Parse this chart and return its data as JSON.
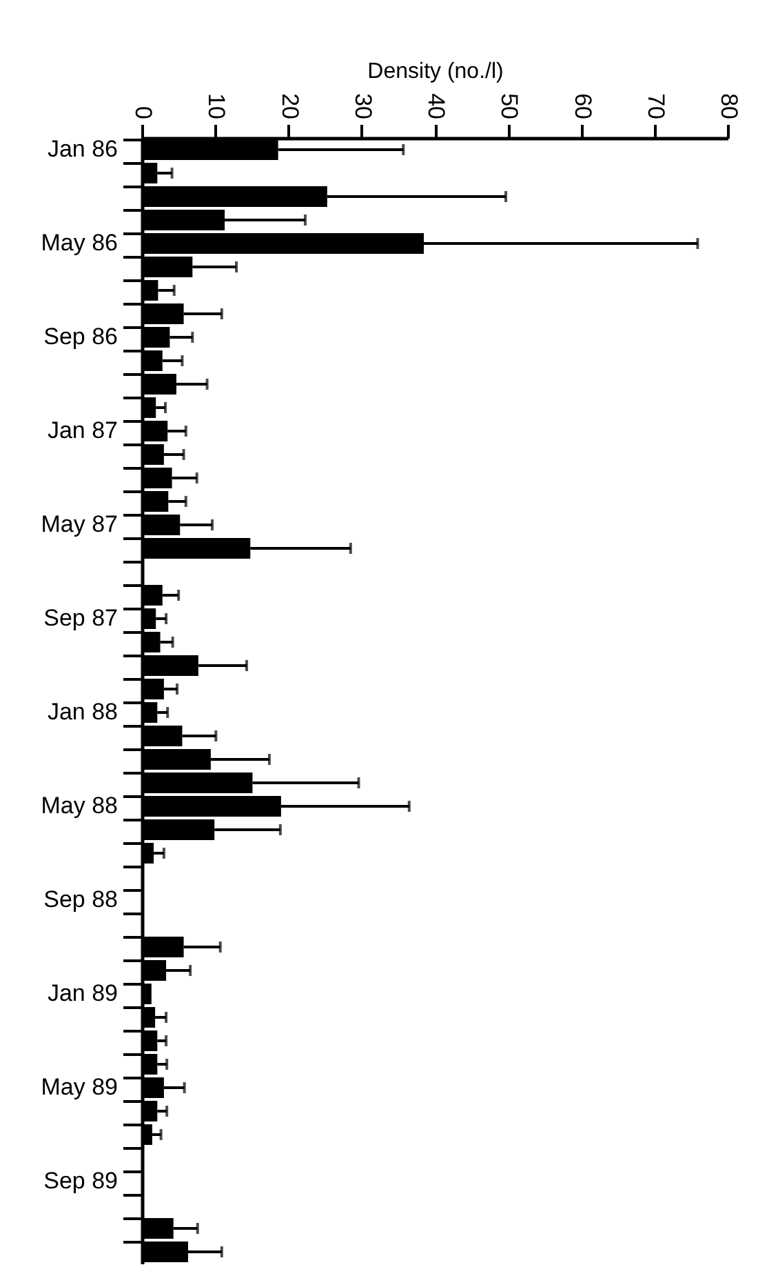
{
  "chart_data": {
    "type": "bar",
    "orientation": "horizontal",
    "xlabel": "Density (no./l)",
    "categories": [
      "Jan 86",
      null,
      null,
      null,
      "May 86",
      null,
      null,
      null,
      "Sep 86",
      null,
      null,
      null,
      "Jan 87",
      null,
      null,
      null,
      "May 87",
      null,
      null,
      null,
      "Sep 87",
      null,
      null,
      null,
      "Jan 88",
      null,
      null,
      null,
      "May 88",
      null,
      null,
      null,
      "Sep 88",
      null,
      null,
      null,
      "Jan 89",
      null,
      null,
      null,
      "May 89",
      null,
      null,
      null,
      "Sep 89",
      null,
      null,
      null
    ],
    "values": [
      18.6,
      2.1,
      25.3,
      11.3,
      38.5,
      6.9,
      2.2,
      5.7,
      3.8,
      2.8,
      4.7,
      1.9,
      3.5,
      3.0,
      4.1,
      3.6,
      5.2,
      14.8,
      null,
      2.8,
      1.9,
      2.5,
      7.7,
      3.0,
      2.1,
      5.5,
      9.4,
      15.1,
      19.0,
      9.9,
      1.6,
      null,
      null,
      null,
      5.7,
      3.3,
      1.3,
      1.8,
      2.1,
      2.1,
      3.0,
      2.1,
      1.4,
      null,
      null,
      null,
      4.3,
      6.3
    ],
    "errors": [
      [
        18.6,
        35.7
      ],
      [
        2.1,
        4.1
      ],
      [
        25.3,
        49.7
      ],
      [
        11.3,
        22.3
      ],
      [
        38.5,
        75.9
      ],
      [
        6.9,
        12.9
      ],
      [
        2.2,
        4.4
      ],
      [
        5.7,
        10.9
      ],
      [
        3.8,
        6.9
      ],
      [
        2.8,
        5.5
      ],
      [
        4.7,
        8.9
      ],
      [
        1.9,
        3.2
      ],
      [
        3.5,
        6.0
      ],
      [
        3.0,
        5.7
      ],
      [
        4.1,
        7.5
      ],
      [
        3.6,
        6.0
      ],
      [
        5.2,
        9.6
      ],
      [
        14.8,
        28.5
      ],
      null,
      [
        2.8,
        5.0
      ],
      [
        1.9,
        3.3
      ],
      [
        2.5,
        4.2
      ],
      [
        7.7,
        14.3
      ],
      [
        3.0,
        4.8
      ],
      [
        2.1,
        3.5
      ],
      [
        5.5,
        10.1
      ],
      [
        9.4,
        17.4
      ],
      [
        15.1,
        29.6
      ],
      [
        19.0,
        36.5
      ],
      [
        9.9,
        18.9
      ],
      [
        1.6,
        3.0
      ],
      null,
      null,
      null,
      [
        5.7,
        10.7
      ],
      [
        3.3,
        6.6
      ],
      null,
      [
        1.8,
        3.3
      ],
      [
        2.1,
        3.3
      ],
      [
        2.1,
        3.4
      ],
      [
        3.0,
        5.8
      ],
      [
        2.1,
        3.4
      ],
      [
        1.4,
        2.6
      ],
      null,
      null,
      null,
      [
        4.3,
        7.6
      ],
      [
        6.3,
        10.9
      ]
    ],
    "color": "#000000",
    "xlim": [
      0,
      80
    ],
    "xticks": [
      0,
      10,
      20,
      30,
      40,
      50,
      60,
      70,
      80
    ]
  }
}
